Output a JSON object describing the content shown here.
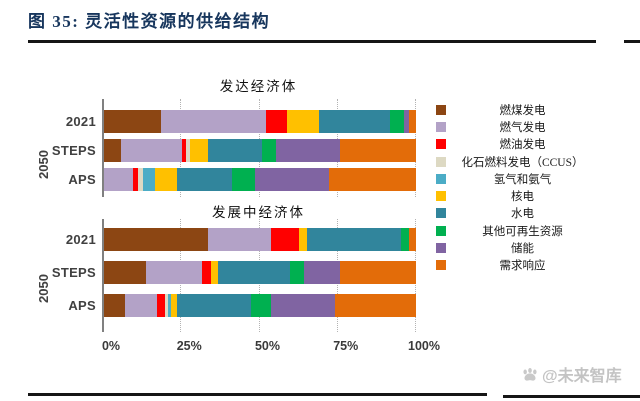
{
  "page": {
    "title_full": "图 35: 灵活性资源的供给结构"
  },
  "watermark": {
    "text": "@未来智库",
    "icon": "paw-icon"
  },
  "chart_data": {
    "type": "bar",
    "variant": "stacked-horizontal",
    "unit": "%",
    "xlim": [
      0,
      100
    ],
    "x_ticks": [
      "0%",
      "25%",
      "50%",
      "75%",
      "100%"
    ],
    "grid": "vertical dotted lines at 25/50/75/100",
    "legend_position": "right",
    "legend": [
      {
        "label": "燃煤发电",
        "color": "#8C4613"
      },
      {
        "label": "燃气发电",
        "color": "#B3A2C7"
      },
      {
        "label": "燃油发电",
        "color": "#FF0000"
      },
      {
        "label": "化石燃料发电（CCUS）",
        "color": "#DDD9C3"
      },
      {
        "label": "氢气和氨气",
        "color": "#4BACC6"
      },
      {
        "label": "核电",
        "color": "#FFC000"
      },
      {
        "label": "水电",
        "color": "#31859C"
      },
      {
        "label": "其他可再生资源",
        "color": "#00B050"
      },
      {
        "label": "储能",
        "color": "#8064A2"
      },
      {
        "label": "需求响应",
        "color": "#E36C09"
      }
    ],
    "groups": [
      {
        "title": "发达经济体",
        "year_label": "2050",
        "rows": [
          {
            "label": "2021",
            "values": [
              18.5,
              33.5,
              6.5,
              0,
              0,
              10.5,
              22.5,
              4.5,
              1.5,
              2.5
            ]
          },
          {
            "label": "STEPS",
            "values": [
              5.5,
              19.5,
              1.5,
              1,
              0,
              6,
              17,
              4.5,
              20.5,
              24.5
            ]
          },
          {
            "label": "APS",
            "values": [
              0,
              9.5,
              1.5,
              1.5,
              4,
              7,
              17.5,
              7.5,
              23.5,
              28
            ]
          }
        ]
      },
      {
        "title": "发展中经济体",
        "year_label": "2050",
        "rows": [
          {
            "label": "2021",
            "values": [
              33.5,
              20,
              9,
              0,
              0,
              2.5,
              30,
              2.5,
              0,
              2.5
            ]
          },
          {
            "label": "STEPS",
            "values": [
              13.5,
              18,
              3,
              0,
              0,
              2,
              23,
              4.5,
              11.5,
              24.5
            ]
          },
          {
            "label": "APS",
            "values": [
              7,
              10,
              2.5,
              1,
              1,
              2,
              23.5,
              6.5,
              20.5,
              26
            ]
          }
        ]
      }
    ]
  }
}
